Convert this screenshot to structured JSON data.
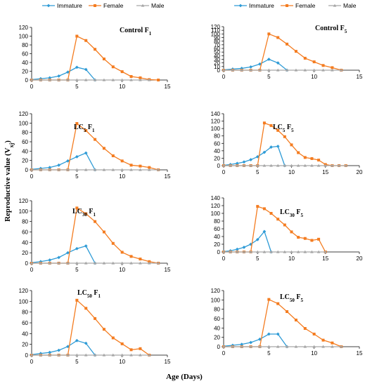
{
  "figure": {
    "ylabel": {
      "main": "Reproductive value (V",
      "sub": "xj",
      "end": ")"
    },
    "xlabel": "Age (Days)"
  },
  "colors": {
    "immature": "#2e9bd6",
    "female": "#f47c20",
    "male": "#a6a6a6"
  },
  "chart_data": [
    {
      "type": "line",
      "title": {
        "main": "Control  F",
        "sub": "1",
        "after": ""
      },
      "xlim": [
        0,
        15
      ],
      "xticks": [
        0,
        5,
        10,
        15
      ],
      "ylim": [
        0,
        120
      ],
      "yticks": [
        0,
        20,
        40,
        60,
        80,
        100,
        120
      ],
      "legend": "top",
      "series": [
        {
          "name": "Immature",
          "x": [
            0,
            1,
            2,
            3,
            4,
            5,
            6,
            7
          ],
          "y": [
            1,
            3,
            5,
            9,
            18,
            29,
            24,
            0
          ]
        },
        {
          "name": "Female",
          "x": [
            0,
            1,
            2,
            3,
            4,
            5,
            6,
            7,
            8,
            9,
            10,
            11,
            12,
            13,
            14
          ],
          "y": [
            0,
            0,
            0,
            0,
            0,
            100,
            90,
            70,
            48,
            30,
            19,
            8,
            5,
            1,
            0
          ]
        },
        {
          "name": "Male",
          "x": [
            0,
            1,
            2,
            3,
            4,
            5,
            6,
            7,
            8,
            9,
            10,
            11,
            12,
            13
          ],
          "y": [
            0,
            0,
            0,
            0,
            0,
            0,
            0,
            0,
            0,
            0,
            0,
            0,
            0,
            0
          ]
        }
      ]
    },
    {
      "type": "line",
      "title": {
        "main": "Control  F",
        "sub": "5",
        "after": ""
      },
      "xlim": [
        0,
        15
      ],
      "xticks": [
        0,
        5,
        10,
        15
      ],
      "ylim": [
        0,
        120
      ],
      "yticks": [
        0,
        10,
        20,
        30,
        40,
        50,
        60,
        70,
        80,
        90,
        100,
        110,
        120
      ],
      "legend": "top",
      "series": [
        {
          "name": "Immature",
          "x": [
            0,
            1,
            2,
            3,
            4,
            5,
            6,
            7
          ],
          "y": [
            1,
            3,
            5,
            9,
            17,
            30,
            20,
            0
          ]
        },
        {
          "name": "Female",
          "x": [
            0,
            1,
            2,
            3,
            4,
            5,
            6,
            7,
            8,
            9,
            10,
            11,
            12,
            13
          ],
          "y": [
            0,
            0,
            0,
            0,
            0,
            100,
            90,
            72,
            52,
            33,
            23,
            13,
            7,
            0
          ]
        },
        {
          "name": "Male",
          "x": [
            0,
            1,
            2,
            3,
            4,
            5,
            6,
            7,
            8,
            9,
            10,
            11,
            12,
            13
          ],
          "y": [
            0,
            0,
            0,
            0,
            0,
            0,
            0,
            0,
            0,
            0,
            0,
            0,
            0,
            0
          ]
        }
      ]
    },
    {
      "type": "line",
      "title": {
        "main": "LC",
        "sub": "5",
        "after": "  F",
        "sub2": "1"
      },
      "xlim": [
        0,
        15
      ],
      "xticks": [
        0,
        5,
        10,
        15
      ],
      "ylim": [
        0,
        120
      ],
      "yticks": [
        0,
        20,
        40,
        60,
        80,
        100,
        120
      ],
      "series": [
        {
          "name": "Immature",
          "x": [
            0,
            1,
            2,
            3,
            4,
            5,
            6,
            7
          ],
          "y": [
            1,
            3,
            5,
            10,
            19,
            28,
            36,
            0
          ]
        },
        {
          "name": "Female",
          "x": [
            0,
            1,
            2,
            3,
            4,
            5,
            6,
            7,
            8,
            9,
            10,
            11,
            12,
            13,
            14
          ],
          "y": [
            0,
            0,
            0,
            0,
            0,
            99,
            84,
            65,
            46,
            30,
            19,
            10,
            8,
            5,
            0
          ]
        },
        {
          "name": "Male",
          "x": [
            0,
            1,
            2,
            3,
            4,
            5,
            6,
            7,
            8,
            9,
            10,
            11,
            12,
            13,
            14
          ],
          "y": [
            0,
            0,
            0,
            0,
            0,
            0,
            0,
            0,
            0,
            0,
            0,
            0,
            0,
            0,
            0
          ]
        }
      ]
    },
    {
      "type": "line",
      "title": {
        "main": "LC",
        "sub": "5",
        "after": "  F",
        "sub2": "5"
      },
      "xlim": [
        0,
        20
      ],
      "xticks": [
        0,
        5,
        10,
        15,
        20
      ],
      "ylim": [
        0,
        140
      ],
      "yticks": [
        0,
        20,
        40,
        60,
        80,
        100,
        120,
        140
      ],
      "series": [
        {
          "name": "Immature",
          "x": [
            0,
            1,
            2,
            3,
            4,
            5,
            6,
            7,
            8,
            9
          ],
          "y": [
            1,
            3,
            6,
            10,
            16,
            24,
            36,
            50,
            52,
            0
          ]
        },
        {
          "name": "Female",
          "x": [
            0,
            1,
            2,
            3,
            4,
            5,
            6,
            7,
            8,
            9,
            10,
            11,
            12,
            13,
            14,
            15,
            16,
            17,
            18
          ],
          "y": [
            0,
            0,
            0,
            0,
            0,
            0,
            115,
            108,
            95,
            78,
            56,
            35,
            22,
            19,
            15,
            3,
            0,
            0,
            0
          ]
        },
        {
          "name": "Male",
          "x": [
            0,
            1,
            2,
            3,
            4,
            5,
            6,
            7,
            8,
            9,
            10,
            11,
            12,
            13,
            14,
            15,
            16,
            17,
            18
          ],
          "y": [
            0,
            0,
            0,
            0,
            0,
            0,
            0,
            0,
            0,
            0,
            0,
            0,
            0,
            0,
            0,
            0,
            0,
            0,
            0
          ]
        }
      ]
    },
    {
      "type": "line",
      "title": {
        "main": "LC",
        "sub": "30",
        "after": " F",
        "sub2": "1"
      },
      "xlim": [
        0,
        15
      ],
      "xticks": [
        0,
        5,
        10,
        15
      ],
      "ylim": [
        0,
        120
      ],
      "yticks": [
        0,
        20,
        40,
        60,
        80,
        100,
        120
      ],
      "series": [
        {
          "name": "Immature",
          "x": [
            0,
            1,
            2,
            3,
            4,
            5,
            6,
            7
          ],
          "y": [
            1,
            3,
            6,
            11,
            20,
            28,
            33,
            0
          ]
        },
        {
          "name": "Female",
          "x": [
            0,
            1,
            2,
            3,
            4,
            5,
            6,
            7,
            8,
            9,
            10,
            11,
            12,
            13,
            14
          ],
          "y": [
            0,
            0,
            0,
            0,
            0,
            106,
            95,
            80,
            60,
            38,
            21,
            13,
            8,
            3,
            0
          ]
        },
        {
          "name": "Male",
          "x": [
            0,
            1,
            2,
            3,
            4,
            5,
            6,
            7,
            8,
            9,
            10,
            11,
            12,
            13,
            14
          ],
          "y": [
            0,
            0,
            0,
            0,
            0,
            0,
            0,
            0,
            0,
            0,
            0,
            0,
            0,
            0,
            0
          ]
        }
      ]
    },
    {
      "type": "line",
      "title": {
        "main": "LC",
        "sub": "30",
        "after": " F",
        "sub2": "5"
      },
      "xlim": [
        0,
        20
      ],
      "xticks": [
        0,
        5,
        10,
        15,
        20
      ],
      "ylim": [
        0,
        140
      ],
      "yticks": [
        0,
        20,
        40,
        60,
        80,
        100,
        120,
        140
      ],
      "series": [
        {
          "name": "Immature",
          "x": [
            0,
            1,
            2,
            3,
            4,
            5,
            6,
            7
          ],
          "y": [
            1,
            3,
            7,
            12,
            20,
            32,
            53,
            0
          ]
        },
        {
          "name": "Female",
          "x": [
            0,
            1,
            2,
            3,
            4,
            5,
            6,
            7,
            8,
            9,
            10,
            11,
            12,
            13,
            14,
            15
          ],
          "y": [
            0,
            0,
            0,
            0,
            0,
            118,
            112,
            100,
            85,
            70,
            52,
            38,
            35,
            30,
            33,
            0
          ]
        },
        {
          "name": "Male",
          "x": [
            0,
            1,
            2,
            3,
            4,
            5,
            6,
            7,
            8,
            9,
            10,
            11,
            12,
            13,
            14,
            15
          ],
          "y": [
            0,
            0,
            0,
            0,
            0,
            0,
            0,
            0,
            0,
            0,
            0,
            0,
            0,
            0,
            0,
            0
          ]
        }
      ]
    },
    {
      "type": "line",
      "title": {
        "main": "LC",
        "sub": "50",
        "after": " F",
        "sub2": "1"
      },
      "xlim": [
        0,
        15
      ],
      "xticks": [
        0,
        5,
        10,
        15
      ],
      "ylim": [
        0,
        120
      ],
      "yticks": [
        0,
        20,
        40,
        60,
        80,
        100,
        120
      ],
      "series": [
        {
          "name": "Immature",
          "x": [
            0,
            1,
            2,
            3,
            4,
            5,
            6,
            7
          ],
          "y": [
            1,
            3,
            5,
            9,
            16,
            27,
            22,
            0
          ]
        },
        {
          "name": "Female",
          "x": [
            0,
            1,
            2,
            3,
            4,
            5,
            6,
            7,
            8,
            9,
            10,
            11,
            12,
            13
          ],
          "y": [
            0,
            0,
            0,
            0,
            0,
            102,
            87,
            68,
            48,
            32,
            21,
            10,
            12,
            0
          ]
        },
        {
          "name": "Male",
          "x": [
            0,
            1,
            2,
            3,
            4,
            5,
            6,
            7,
            8,
            9,
            10,
            11,
            12,
            13
          ],
          "y": [
            0,
            0,
            0,
            0,
            0,
            0,
            0,
            0,
            0,
            0,
            0,
            0,
            0,
            0
          ]
        }
      ]
    },
    {
      "type": "line",
      "title": {
        "main": "LC",
        "sub": "50",
        "after": " F",
        "sub2": "5"
      },
      "xlim": [
        0,
        15
      ],
      "xticks": [
        0,
        5,
        10,
        15
      ],
      "ylim": [
        0,
        120
      ],
      "yticks": [
        0,
        20,
        40,
        60,
        80,
        100,
        120
      ],
      "series": [
        {
          "name": "Immature",
          "x": [
            0,
            1,
            2,
            3,
            4,
            5,
            6,
            7
          ],
          "y": [
            1,
            3,
            5,
            9,
            16,
            27,
            27,
            0
          ]
        },
        {
          "name": "Female",
          "x": [
            0,
            1,
            2,
            3,
            4,
            5,
            6,
            7,
            8,
            9,
            10,
            11,
            12,
            13
          ],
          "y": [
            0,
            0,
            0,
            0,
            0,
            101,
            92,
            75,
            57,
            39,
            27,
            14,
            8,
            0
          ]
        },
        {
          "name": "Male",
          "x": [
            0,
            1,
            2,
            3,
            4,
            5,
            6,
            7,
            8,
            9,
            10,
            11,
            12,
            13
          ],
          "y": [
            0,
            0,
            0,
            0,
            0,
            0,
            0,
            0,
            0,
            0,
            0,
            0,
            0,
            0
          ]
        }
      ]
    }
  ]
}
